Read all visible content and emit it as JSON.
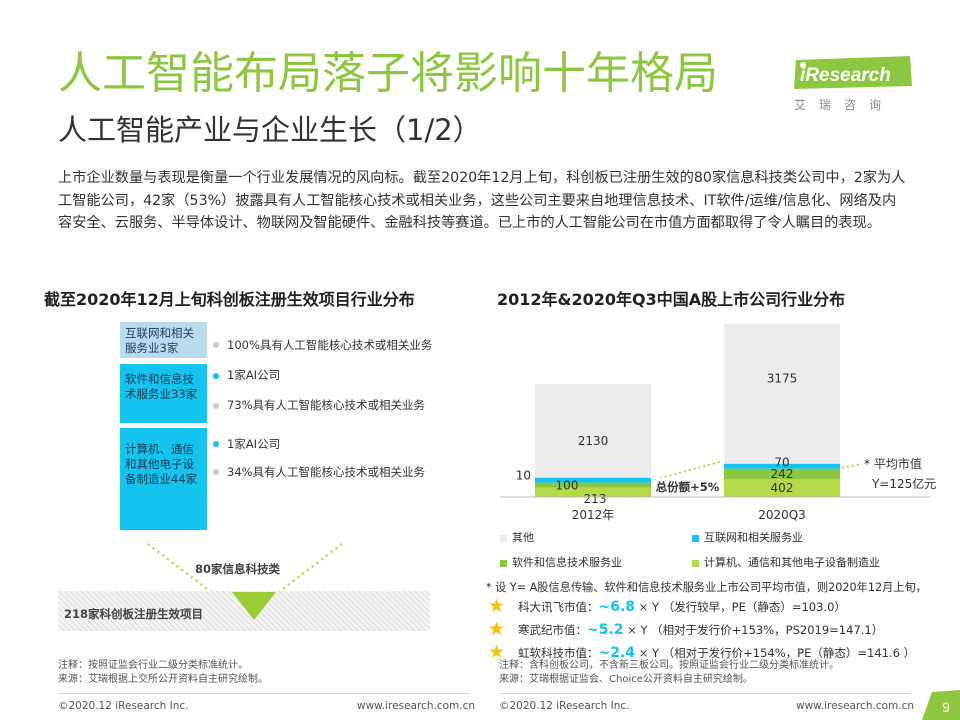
{
  "header": {
    "title": "人工智能布局落子将影响十年格局",
    "subtitle": "人工智能产业与企业生长（1/2）",
    "intro": "上市企业数量与表现是衡量一个行业发展情况的风向标。截至2020年12月上旬，科创板已注册生效的80家信息科技类公司中，2家为人工智能公司，42家（53%）披露具有人工智能核心技术或相关业务，这些公司主要来自地理信息技术、IT软件/运维/信息化、网络及内容安全、云服务、半导体设计、物联网及智能硬件、金融科技等赛道。已上市的人工智能公司在市值方面都取得了令人瞩目的表现。"
  },
  "logo": {
    "name": "iResearch",
    "sub": "艾瑞咨询"
  },
  "left_panel": {
    "title": "截至2020年12月上旬科创板注册生效项目行业分布",
    "boxes": [
      {
        "label": "互联网和相关服务业3家"
      },
      {
        "label": "软件和信息技术服务业33家"
      },
      {
        "label": "计算机、通信和其他电子设备制造业44家"
      }
    ],
    "notes": [
      "100%具有人工智能核心技术或相关业务",
      "1家AI公司",
      "73%具有人工智能核心技术或相关业务",
      "1家AI公司",
      "34%具有人工智能核心技术或相关业务"
    ],
    "funnel_label": "80家信息科技类",
    "base_label": "218家科创板注册生效项目",
    "footnote_1": "注释：按照证监会行业二级分类标准统计。",
    "footnote_2": "来源：艾瑞根据上交所公开资料自主研究绘制。",
    "copyright": "©2020.12 iResearch Inc.",
    "website": "www.iresearch.com.cn"
  },
  "right_panel": {
    "title": "2012年&2020年Q3中国A股上市公司行业分布",
    "growth_label": "总份额+5%",
    "avg_label_1": "* 平均市值",
    "avg_label_2": "Y=125亿元",
    "note_intro": "* 设 Y= A股信息传输、软件和信息技术服务业上市公司平均市值，则2020年12月上旬，",
    "stars": [
      {
        "name": "科大讯飞市值：",
        "value": "~6.8",
        "rest": "× Y （发行较早，PE（静态）=103.0）"
      },
      {
        "name": "寒武纪市值：",
        "value": "~5.2",
        "rest": "× Y （相对于发行价+153%，PS2019=147.1）"
      },
      {
        "name": "虹软科技市值：",
        "value": "~2.4",
        "rest": "× Y （相对于发行价+154%，PE（静态）=141.6 ）"
      }
    ],
    "footnote_1": "注释：含科创板公司，不含新三板公司。按照证监会行业二级分类标准统计。",
    "footnote_2": "来源：艾瑞根据证监会、Choice公开资料自主研究绘制。",
    "copyright": "©2020.12 iResearch Inc.",
    "website": "www.iresearch.com.cn"
  },
  "page_number": "9",
  "colors": {
    "accent": "#8dc63f",
    "cyan": "#14c3ee",
    "other": "#ececec",
    "software": "#8dc63f",
    "computer": "#b6d94a",
    "star": "#f5c400"
  },
  "chart_data": {
    "type": "bar",
    "stacked": true,
    "title": "2012年&2020年Q3中国A股上市公司行业分布",
    "categories": [
      "2012年",
      "2020Q3"
    ],
    "series": [
      {
        "name": "计算机、通信和其他电子设备制造业",
        "values": [
          213,
          402
        ],
        "color": "#b6d94a"
      },
      {
        "name": "软件和信息技术服务业",
        "values": [
          100,
          242
        ],
        "color": "#8dc63f"
      },
      {
        "name": "互联网和相关服务业",
        "values": [
          10,
          70
        ],
        "color": "#14c3ee"
      },
      {
        "name": "其他",
        "values": [
          2130,
          3175
        ],
        "color": "#ececec"
      }
    ],
    "legend": [
      "其他",
      "互联网和相关服务业",
      "软件和信息技术服务业",
      "计算机、通信和其他电子设备制造业"
    ],
    "legend_position": "bottom"
  }
}
